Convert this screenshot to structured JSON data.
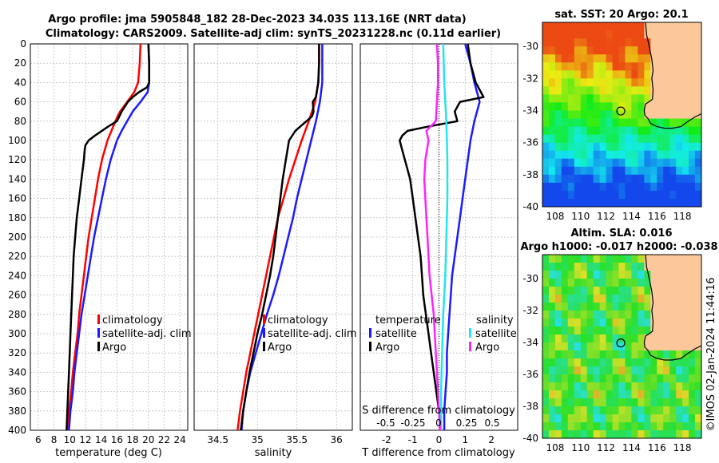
{
  "titles": {
    "line1": "Argo profile: jma 5905848_182 28-Dec-2023 34.03S 113.16E (NRT data)",
    "line2": "Climatology: CARS2009. Satellite-adj clim: synTS_20231228.nc (0.11d earlier)"
  },
  "colors": {
    "climatology": "#ff0000",
    "satellite": "#1a1aff",
    "argo": "#000000",
    "sal_satellite": "#22e5ee",
    "sal_argo": "#ff22ff",
    "land": "#fcc89a",
    "coast": "#000000"
  },
  "chart_data": [
    {
      "type": "line",
      "id": "temperature",
      "xlabel": "temperature (deg C)",
      "ylabel": "",
      "xlim": [
        5,
        25
      ],
      "ylim": [
        400,
        0
      ],
      "xticks": [
        6,
        8,
        10,
        12,
        14,
        16,
        18,
        20,
        22,
        24
      ],
      "yticks": [
        0,
        20,
        40,
        60,
        80,
        100,
        120,
        140,
        160,
        180,
        200,
        220,
        240,
        260,
        280,
        300,
        320,
        340,
        360,
        380,
        400
      ],
      "grid": true,
      "legend": {
        "position": "lower-right",
        "entries": [
          "climatology",
          "satellite-adj. clim",
          "Argo"
        ]
      },
      "series": [
        {
          "name": "climatology",
          "color": "#ff0000",
          "depth": [
            0,
            20,
            40,
            50,
            60,
            70,
            80,
            90,
            100,
            120,
            140,
            160,
            180,
            200,
            220,
            240,
            260,
            280,
            300,
            320,
            340,
            360,
            380,
            400
          ],
          "values": [
            19.0,
            18.9,
            18.7,
            18.2,
            17.3,
            16.4,
            15.8,
            15.3,
            14.8,
            14.1,
            13.6,
            13.2,
            12.8,
            12.4,
            12.1,
            11.8,
            11.5,
            11.2,
            11.0,
            10.7,
            10.4,
            10.2,
            9.9,
            9.7
          ]
        },
        {
          "name": "satellite-adj. clim",
          "color": "#1a1aff",
          "depth": [
            0,
            20,
            40,
            50,
            60,
            70,
            80,
            90,
            100,
            120,
            140,
            160,
            180,
            200,
            220,
            240,
            260,
            280,
            300,
            320,
            340,
            360,
            380,
            400
          ],
          "values": [
            20.0,
            20.1,
            20.1,
            19.9,
            19.0,
            18.0,
            17.3,
            16.6,
            16.0,
            15.2,
            14.6,
            14.1,
            13.6,
            13.1,
            12.7,
            12.3,
            11.9,
            11.5,
            11.2,
            10.9,
            10.6,
            10.4,
            10.1,
            9.9
          ]
        },
        {
          "name": "Argo",
          "color": "#000000",
          "depth": [
            0,
            20,
            40,
            45,
            50,
            55,
            60,
            70,
            80,
            85,
            90,
            95,
            100,
            105,
            110,
            120,
            140,
            160,
            180,
            200,
            220,
            240,
            260,
            280,
            300,
            320,
            340,
            360,
            380,
            400
          ],
          "values": [
            20.0,
            20.1,
            20.1,
            19.8,
            18.8,
            18.0,
            17.4,
            16.6,
            16.0,
            15.0,
            14.1,
            13.2,
            12.4,
            12.0,
            11.9,
            11.8,
            11.5,
            11.2,
            10.9,
            10.7,
            10.5,
            10.4,
            10.3,
            10.2,
            10.1,
            10.0,
            9.9,
            9.8,
            9.7,
            9.6
          ]
        }
      ]
    },
    {
      "type": "line",
      "id": "salinity",
      "xlabel": "salinity",
      "ylabel": "",
      "xlim": [
        34.2,
        36.2
      ],
      "ylim": [
        400,
        0
      ],
      "xticks": [
        34.5,
        35,
        35.5,
        36
      ],
      "xticklabels": [
        "34.5",
        "35",
        "35.5",
        "36"
      ],
      "grid": true,
      "legend": {
        "position": "lower-right",
        "entries": [
          "climatology",
          "satellite-adj. clim",
          "Argo"
        ]
      },
      "series": [
        {
          "name": "climatology",
          "color": "#ff0000",
          "depth": [
            0,
            20,
            40,
            60,
            80,
            100,
            120,
            140,
            160,
            180,
            200,
            220,
            240,
            260,
            280,
            300,
            320,
            340,
            360,
            380,
            400
          ],
          "values": [
            35.78,
            35.78,
            35.77,
            35.73,
            35.65,
            35.56,
            35.48,
            35.4,
            35.33,
            35.26,
            35.21,
            35.16,
            35.11,
            35.06,
            35.01,
            34.96,
            34.91,
            34.86,
            34.82,
            34.78,
            34.75
          ]
        },
        {
          "name": "satellite-adj. clim",
          "color": "#1a1aff",
          "depth": [
            0,
            20,
            40,
            60,
            80,
            100,
            120,
            140,
            160,
            180,
            200,
            220,
            240,
            260,
            280,
            300,
            320,
            340,
            360,
            380,
            400
          ],
          "values": [
            35.82,
            35.82,
            35.82,
            35.79,
            35.74,
            35.68,
            35.62,
            35.56,
            35.5,
            35.45,
            35.39,
            35.33,
            35.27,
            35.2,
            35.12,
            35.05,
            34.98,
            34.91,
            34.86,
            34.82,
            34.8
          ]
        },
        {
          "name": "Argo",
          "color": "#000000",
          "depth": [
            0,
            20,
            40,
            55,
            60,
            70,
            75,
            80,
            90,
            100,
            120,
            140,
            160,
            180,
            200,
            220,
            240,
            260,
            280,
            300,
            320,
            340,
            360,
            380,
            400
          ],
          "values": [
            35.78,
            35.78,
            35.77,
            35.74,
            35.7,
            35.71,
            35.69,
            35.62,
            35.48,
            35.4,
            35.36,
            35.32,
            35.29,
            35.26,
            35.23,
            35.2,
            35.16,
            35.11,
            35.06,
            35.0,
            34.95,
            34.9,
            34.86,
            34.82,
            34.79
          ]
        }
      ]
    },
    {
      "type": "line",
      "id": "difference",
      "xlabel": "T difference from climatology",
      "xlabel_top": "S difference from climatology",
      "xlim": [
        -3,
        3
      ],
      "ylim": [
        400,
        0
      ],
      "xticks": [
        -2,
        -1,
        0,
        1,
        2
      ],
      "xticklabels": [
        "-2",
        "-1",
        "0",
        "1",
        "2"
      ],
      "sticks": [
        -0.5,
        -0.25,
        0,
        0.25,
        0.5
      ],
      "sticklabels": [
        "-0.5",
        "-0.25",
        "0",
        "0.25",
        "0.5"
      ],
      "grid": true,
      "legend_temperature": {
        "header": "temperature",
        "entries": [
          "satellite",
          "Argo"
        ]
      },
      "legend_salinity": {
        "header": "salinity",
        "entries": [
          "satellite",
          "Argo"
        ]
      },
      "series": [
        {
          "name": "temperature satellite",
          "color": "#1a1aff",
          "depth": [
            0,
            20,
            40,
            60,
            80,
            100,
            120,
            140,
            160,
            180,
            200,
            220,
            240,
            260,
            280,
            300,
            320,
            340,
            360,
            380,
            400
          ],
          "values": [
            1.0,
            1.2,
            1.35,
            1.55,
            1.35,
            1.2,
            1.1,
            1.0,
            0.9,
            0.8,
            0.7,
            0.6,
            0.5,
            0.45,
            0.4,
            0.35,
            0.3,
            0.3,
            0.25,
            0.2,
            0.2
          ]
        },
        {
          "name": "temperature Argo",
          "color": "#000000",
          "depth": [
            0,
            20,
            40,
            50,
            55,
            60,
            70,
            80,
            85,
            90,
            95,
            100,
            110,
            120,
            140,
            160,
            180,
            200,
            220,
            240,
            260,
            280,
            300,
            320,
            340,
            360,
            380,
            400
          ],
          "values": [
            1.1,
            1.2,
            1.4,
            1.6,
            1.7,
            0.8,
            0.6,
            0.7,
            -0.3,
            -1.2,
            -1.4,
            -1.5,
            -1.4,
            -1.3,
            -1.1,
            -1.0,
            -0.9,
            -0.8,
            -0.7,
            -0.65,
            -0.6,
            -0.5,
            -0.4,
            -0.3,
            -0.2,
            -0.1,
            0.0,
            0.05
          ]
        },
        {
          "name": "salinity satellite",
          "color": "#22e5ee",
          "depth": [
            0,
            40,
            80,
            120,
            160,
            200,
            240,
            280,
            320,
            360,
            400
          ],
          "svalues": [
            0.04,
            0.05,
            0.07,
            0.08,
            0.08,
            0.07,
            0.06,
            0.04,
            0.03,
            0.02,
            0.02
          ]
        },
        {
          "name": "salinity Argo",
          "color": "#ff22ff",
          "depth": [
            0,
            20,
            40,
            60,
            80,
            90,
            100,
            120,
            140,
            160,
            180,
            200,
            220,
            240,
            260,
            280,
            300,
            320,
            340,
            360,
            380,
            400
          ],
          "svalues": [
            -0.02,
            -0.01,
            -0.01,
            -0.02,
            -0.03,
            -0.12,
            -0.1,
            -0.13,
            -0.14,
            -0.13,
            -0.12,
            -0.11,
            -0.1,
            -0.09,
            -0.07,
            -0.05,
            -0.04,
            -0.03,
            -0.02,
            -0.01,
            0.0,
            0.01
          ]
        }
      ]
    },
    {
      "type": "heatmap",
      "id": "sst_map",
      "title": "sat. SST: 20 Argo: 20.1",
      "xlim": [
        107,
        119.5
      ],
      "ylim": [
        -40,
        -28.5
      ],
      "xticks": [
        108,
        110,
        112,
        114,
        116,
        118
      ],
      "yticks": [
        -30,
        -32,
        -34,
        -36,
        -38,
        -40
      ],
      "marker": {
        "lon": 113.16,
        "lat": -34.03
      }
    },
    {
      "type": "heatmap",
      "id": "sla_map",
      "title_line1": "Altim. SLA: 0.016",
      "title_line2": "Argo h1000: -0.017 h2000: -0.038",
      "xlim": [
        107,
        119.5
      ],
      "ylim": [
        -40,
        -28.5
      ],
      "xticks": [
        108,
        110,
        112,
        114,
        116,
        118
      ],
      "yticks": [
        -30,
        -32,
        -34,
        -36,
        -38,
        -40
      ],
      "marker": {
        "lon": 113.16,
        "lat": -34.03
      }
    }
  ],
  "coastline": {
    "lon": [
      115.1,
      115.2,
      115.4,
      115.6,
      115.7,
      115.6,
      115.7,
      115.65,
      115.3,
      115.1,
      115.0,
      115.05,
      115.3,
      115.5,
      116.0,
      116.6,
      117.2,
      117.9,
      118.4,
      119.0,
      119.5
    ],
    "lat": [
      -28.5,
      -29.3,
      -30.0,
      -30.8,
      -31.5,
      -32.0,
      -32.7,
      -33.3,
      -33.5,
      -33.6,
      -34.0,
      -34.3,
      -34.5,
      -34.8,
      -35.0,
      -35.1,
      -35.1,
      -35.0,
      -34.7,
      -34.4,
      -34.2
    ]
  },
  "footer": {
    "stamp": "©IMOS 02-Jan-2024 11:44:16"
  }
}
